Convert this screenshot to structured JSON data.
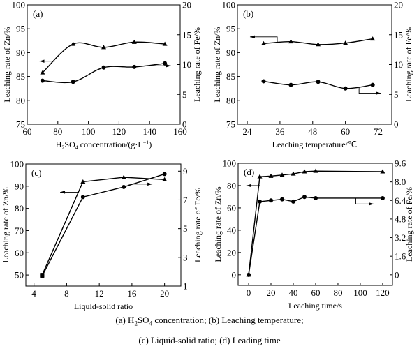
{
  "chart_data": [
    {
      "panel": "(a)",
      "type": "line",
      "smooth": true,
      "xlabel": "H2SO4 concentration/(g·L⁻¹)",
      "xlabel_parts": [
        "H",
        "2",
        "SO",
        "4",
        " concentration/(g·L",
        "−1",
        ")"
      ],
      "ylabel_left": "Leaching rate of Zn/%",
      "ylabel_right": "Leaching rate of Fe/%",
      "xlim": [
        60,
        160
      ],
      "xticks": [
        60,
        80,
        100,
        120,
        140,
        160
      ],
      "ylim_left": [
        75,
        100
      ],
      "yticks_left": [
        75,
        80,
        85,
        90,
        95,
        100
      ],
      "ylim_right": [
        0,
        20
      ],
      "yticks_right": [
        0,
        5,
        10,
        15,
        20
      ],
      "series": [
        {
          "axis": "left",
          "marker": "triangle",
          "x": [
            70,
            90,
            110,
            130,
            150
          ],
          "y": [
            85.8,
            91.8,
            91.1,
            92.2,
            91.8
          ]
        },
        {
          "axis": "right",
          "marker": "circle",
          "x": [
            70,
            90,
            110,
            130,
            150
          ],
          "y": [
            7.3,
            7.1,
            9.5,
            9.6,
            10.2
          ]
        }
      ],
      "arrows": [
        {
          "axis": "left",
          "points": [
            [
              78,
              88.2
            ],
            [
              68,
              88.2
            ]
          ]
        },
        {
          "axis": "right",
          "points": [
            [
              140,
              9.8
            ],
            [
              154,
              9.8
            ]
          ]
        }
      ]
    },
    {
      "panel": "(b)",
      "type": "line",
      "smooth": true,
      "xlabel": "Leaching temperature/℃",
      "ylabel_left": "Leaching rate of Zn/%",
      "ylabel_right": "Leaching rate of Fe/%",
      "xlim": [
        20.4,
        77
      ],
      "xticks": [
        24,
        36,
        48,
        60,
        72
      ],
      "ylim_left": [
        75,
        100
      ],
      "yticks_left": [
        75,
        80,
        85,
        90,
        95,
        100
      ],
      "ylim_right": [
        0,
        20
      ],
      "yticks_right": [
        0,
        5,
        10,
        15,
        20
      ],
      "series": [
        {
          "axis": "left",
          "marker": "triangle",
          "x": [
            30,
            40,
            50,
            60,
            70
          ],
          "y": [
            91.9,
            92.3,
            91.7,
            92.0,
            92.9
          ]
        },
        {
          "axis": "right",
          "marker": "circle",
          "x": [
            30,
            40,
            50,
            60,
            70
          ],
          "y": [
            7.2,
            6.6,
            7.1,
            6.0,
            6.6
          ]
        }
      ],
      "arrows": [
        {
          "axis": "left",
          "points": [
            [
              35,
              92.1
            ],
            [
              35,
              93.3
            ],
            [
              25,
              93.3
            ]
          ]
        },
        {
          "axis": "right",
          "points": [
            [
              65,
              6.2
            ],
            [
              65,
              5.2
            ],
            [
              73,
              5.2
            ]
          ]
        }
      ]
    },
    {
      "panel": "(c)",
      "type": "line",
      "smooth": false,
      "xlabel": "Liquid-solid ratio",
      "ylabel_left": "Leaching rate of Zn/%",
      "ylabel_right": "Leaching rate of Fe/%",
      "xlim": [
        3,
        22
      ],
      "xticks": [
        4,
        8,
        12,
        16,
        20
      ],
      "ylim_left": [
        45,
        100
      ],
      "yticks_left": [
        50,
        60,
        70,
        80,
        90,
        100
      ],
      "ylim_right": [
        1,
        9.5
      ],
      "yticks_right": [
        1,
        3,
        5,
        7,
        9
      ],
      "series": [
        {
          "axis": "left",
          "marker": "triangle",
          "x": [
            5,
            10,
            15,
            20
          ],
          "y": [
            50,
            92,
            94,
            93
          ]
        },
        {
          "axis": "right",
          "marker": "circle",
          "x": [
            5,
            10,
            15,
            20
          ],
          "y": [
            1.7,
            7.2,
            7.9,
            8.8
          ]
        }
      ],
      "arrows": [
        {
          "axis": "left",
          "points": [
            [
              9.5,
              87.3
            ],
            [
              7.2,
              87.3
            ]
          ]
        },
        {
          "axis": "right",
          "points": [
            [
              15.5,
              8.1
            ],
            [
              18.5,
              8.1
            ]
          ]
        }
      ]
    },
    {
      "panel": "(d)",
      "type": "line",
      "smooth": false,
      "xlabel": "Leaching time/s",
      "ylabel_left": "Leaching rate of Zn/%",
      "ylabel_right": "Leaching rate of Fe/%",
      "xlim": [
        -9.4,
        128.8
      ],
      "xticks": [
        0,
        20,
        40,
        60,
        80,
        100,
        120
      ],
      "ylim_left": [
        -9.5,
        100
      ],
      "yticks_left": [
        0,
        20,
        40,
        60,
        80,
        100
      ],
      "ylim_right": [
        -0.912,
        9.6
      ],
      "yticks_right": [
        0,
        1.6,
        3.2,
        4.8,
        6.4,
        8.0,
        9.6
      ],
      "yticks_right_labels": [
        "0",
        "1.6",
        "3.2",
        "4.8",
        "6.4",
        "8.0",
        "9.6"
      ],
      "series": [
        {
          "axis": "left",
          "marker": "triangle",
          "x": [
            0,
            10,
            20,
            30,
            40,
            50,
            60,
            120
          ],
          "y": [
            0,
            88,
            88.5,
            89.5,
            90.5,
            92.5,
            93,
            92.5
          ]
        },
        {
          "axis": "right",
          "marker": "circle",
          "x": [
            0,
            10,
            20,
            30,
            40,
            50,
            60,
            120
          ],
          "y": [
            0,
            6.3,
            6.4,
            6.5,
            6.3,
            6.7,
            6.6,
            6.6
          ]
        }
      ],
      "arrows": [
        {
          "axis": "left",
          "points": [
            [
              10,
              80
            ],
            [
              -2,
              80
            ]
          ]
        },
        {
          "axis": "right",
          "points": [
            [
              96,
              6.6
            ],
            [
              96,
              6.1
            ],
            [
              112,
              6.1
            ]
          ]
        }
      ]
    }
  ],
  "caption": {
    "line1": "(a) H2SO4 concentration; (b) Leaching temperature;",
    "line1_parts": [
      "(a) H",
      "2",
      "SO",
      "4",
      " concentration; (b) Leaching temperature;"
    ],
    "line2": "(c) Liquid-solid ratio; (d) Leading time"
  }
}
